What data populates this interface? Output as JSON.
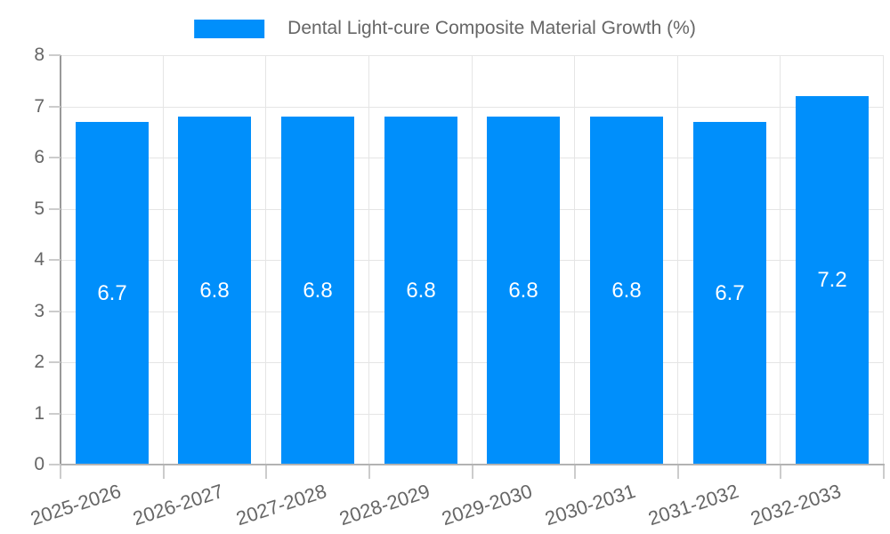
{
  "legend": {
    "label": "Dental Light-cure Composite Material Growth (%)"
  },
  "colors": {
    "bar": "#008FFB",
    "bar_label": "#FFFFFF",
    "legend_text": "#666666",
    "axis_text": "#666666",
    "grid": "#E5E5E5",
    "y_axis_line": "#999999",
    "x_axis_line": "#B3B3B3",
    "tick": "#CCCCCC",
    "background": "#FFFFFF"
  },
  "chart_data": {
    "type": "bar",
    "title": "Dental Light-cure Composite Material Growth (%)",
    "categories": [
      "2025-2026",
      "2026-2027",
      "2027-2028",
      "2028-2029",
      "2029-2030",
      "2030-2031",
      "2031-2032",
      "2032-2033"
    ],
    "values": [
      6.7,
      6.8,
      6.8,
      6.8,
      6.8,
      6.8,
      6.7,
      7.2
    ],
    "xlabel": "",
    "ylabel": "",
    "ylim": [
      0,
      8
    ],
    "yticks": [
      0,
      1,
      2,
      3,
      4,
      5,
      6,
      7,
      8
    ],
    "grid": true,
    "legend_position": "top",
    "bar_labels_shown": true,
    "x_label_rotation_deg": -18
  }
}
